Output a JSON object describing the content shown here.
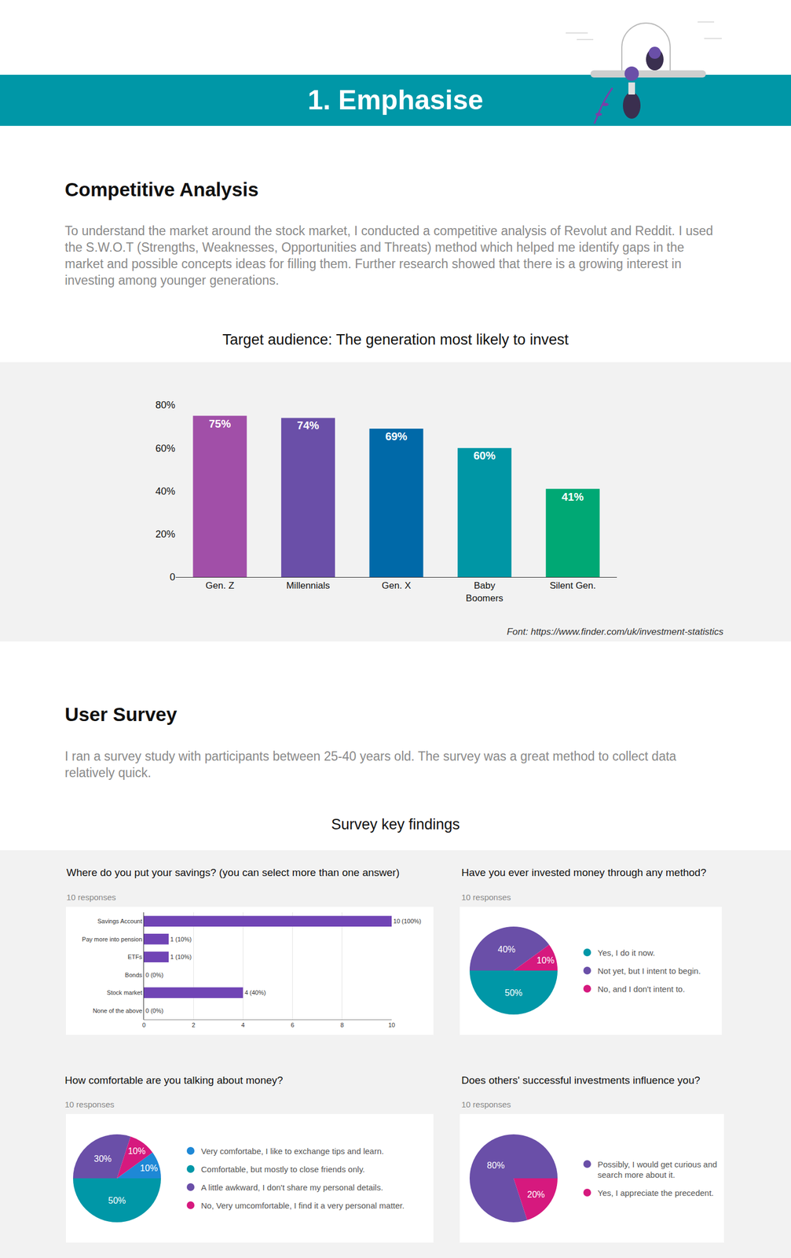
{
  "header": {
    "title": "1. Emphasise"
  },
  "competitive_analysis": {
    "heading": "Competitive Analysis",
    "text": "To understand the market around the stock market, I conducted a competitive analysis of Revolut and Reddit. I used the S.W.O.T (Strengths, Weaknesses, Opportunities and Threats) method which helped me identify gaps in the market and possible concepts ideas for filling them. Further research showed that there is a growing interest in investing among younger generations.",
    "source": "Font: https://www.finder.com/uk/investment-statistics"
  },
  "user_survey": {
    "heading": "User Survey",
    "text": "I ran a survey study with participants between 25-40 years old. The survey was a great method to collect data relatively quick.",
    "findings_title": "Survey key findings"
  },
  "chart_data": [
    {
      "type": "bar",
      "title": "Target audience: The generation most likely to invest",
      "categories": [
        "Gen. Z",
        "Millennials",
        "Gen. X",
        "Baby Boomers",
        "Silent Gen."
      ],
      "values": [
        75,
        74,
        69,
        60,
        41
      ],
      "value_labels": [
        "75%",
        "74%",
        "69%",
        "60%",
        "41%"
      ],
      "colors": [
        "#a14fa8",
        "#6a4fa8",
        "#0069a8",
        "#0096a5",
        "#00a874"
      ],
      "ylim": [
        0,
        80
      ],
      "yticks": [
        0,
        {
          "value": 20,
          "label": "20%"
        },
        {
          "value": 40,
          "label": "40%"
        },
        {
          "value": 60,
          "label": "60%"
        },
        {
          "value": 80,
          "label": "80%"
        }
      ],
      "grid": false,
      "data_labels": true
    },
    {
      "type": "bar",
      "title": "Where do you put your savings? (you can select more than one answer)",
      "subtitle": "10 responses",
      "orientation": "horizontal",
      "categories": [
        "Savings Account",
        "Pay more into pension",
        "ETFs",
        "Bonds",
        "Stock market",
        "None of the above"
      ],
      "values": [
        10,
        1,
        1,
        0,
        4,
        0
      ],
      "value_labels": [
        "10 (100%)",
        "1 (10%)",
        "1 (10%)",
        "0 (0%)",
        "4 (40%)",
        "0 (0%)"
      ],
      "color": "#7044b5",
      "xlim": [
        0,
        10
      ],
      "xticks": [
        0,
        2,
        4,
        6,
        8,
        10
      ],
      "grid": true,
      "data_labels": true
    },
    {
      "type": "pie",
      "title": "Have you ever invested money through any method?",
      "subtitle": "10 responses",
      "categories": [
        "Yes, I do it now.",
        "Not yet, but I intent to begin.",
        "No, and I don't intent to."
      ],
      "values": [
        50,
        40,
        10
      ],
      "value_labels": [
        "50%",
        "40%",
        "10%"
      ],
      "colors": [
        "#0097a7",
        "#6a4fa8",
        "#d6197e"
      ],
      "data_labels": true,
      "legend": "right"
    },
    {
      "type": "pie",
      "title": "How comfortable are you talking about money?",
      "subtitle": "10 responses",
      "categories": [
        "Very comfortabe, I like to exchange tips and learn.",
        "Comfortable, but mostly to close friends only.",
        "A little awkward, I don't share my personal details.",
        "No, Very umcomfortable, I find it a very personal matter."
      ],
      "values": [
        10,
        50,
        30,
        10
      ],
      "value_labels": [
        "10%",
        "50%",
        "30%",
        "10%"
      ],
      "colors": [
        "#1e88d6",
        "#0097a7",
        "#6a4fa8",
        "#d6197e"
      ],
      "data_labels": true,
      "legend": "right"
    },
    {
      "type": "pie",
      "title": "Does others' successful investments influence you?",
      "subtitle": "10 responses",
      "categories": [
        "Possibly, I would get curious and search more about it.",
        "Yes, I appreciate the precedent."
      ],
      "values": [
        80,
        20
      ],
      "value_labels": [
        "80%",
        "20%"
      ],
      "colors": [
        "#6a4fa8",
        "#d6197e"
      ],
      "data_labels": true,
      "legend": "right"
    }
  ]
}
